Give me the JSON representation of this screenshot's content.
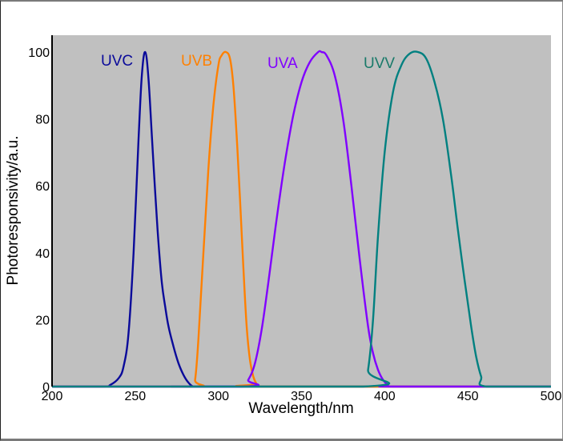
{
  "chart_data": {
    "type": "line",
    "title": "",
    "xlabel": "Wavelength/nm",
    "ylabel": "Photoresponsivity/a.u.",
    "xlim": [
      200,
      500
    ],
    "ylim": [
      0,
      105
    ],
    "x_ticks": [
      200,
      250,
      300,
      350,
      400,
      450,
      500
    ],
    "y_ticks": [
      0,
      20,
      40,
      60,
      80,
      100
    ],
    "grid": false,
    "legend": "inline labels near peaks",
    "plot_background": "#c0c0c0",
    "series": [
      {
        "name": "UVC",
        "color": "#0a0a9a",
        "label_pos": [
          234,
          100
        ],
        "x": [
          200,
          230,
          235,
          240,
          243,
          246,
          249,
          252,
          254,
          256,
          258,
          260,
          262,
          264,
          266,
          268,
          270,
          273,
          276,
          279,
          282,
          285,
          290,
          500
        ],
        "y": [
          0,
          0,
          0.5,
          2.5,
          6,
          16,
          40,
          74,
          93,
          100,
          92,
          75,
          58,
          43,
          31,
          24,
          18,
          12,
          7,
          3.5,
          1.2,
          0,
          0,
          0
        ]
      },
      {
        "name": "UVB",
        "color": "#ff8000",
        "label_pos": [
          282,
          100
        ],
        "x": [
          200,
          284,
          286,
          288,
          291,
          294,
          297,
          300,
          302,
          304.5,
          307,
          309,
          311,
          313,
          315,
          317,
          319,
          321,
          323,
          325,
          500
        ],
        "y": [
          0,
          0,
          2,
          14,
          40,
          65,
          84,
          96,
          99,
          100,
          98,
          90,
          75,
          56,
          36,
          18,
          8,
          3,
          0.8,
          0,
          0
        ]
      },
      {
        "name": "UVA",
        "color": "#8000ff",
        "label_pos": [
          338,
          100
        ],
        "x": [
          200,
          314,
          318,
          322,
          326,
          330,
          335,
          340,
          345,
          350,
          355,
          360,
          362,
          365,
          370,
          375,
          380,
          385,
          390,
          393,
          396,
          399,
          402,
          405,
          500
        ],
        "y": [
          0,
          0,
          2,
          7,
          17,
          31,
          50,
          67,
          81,
          91,
          97,
          100,
          100,
          99,
          93,
          80,
          60,
          38,
          18,
          10,
          5,
          2,
          0.5,
          0,
          0
        ]
      },
      {
        "name": "UVV",
        "color": "#008080",
        "label_pos": [
          403,
          100
        ],
        "x": [
          200,
          387,
          390,
          393,
          396,
          400,
          405,
          410,
          415,
          420,
          425,
          430,
          435,
          440,
          444,
          448,
          452,
          455,
          458,
          461,
          500
        ],
        "y": [
          0,
          0,
          5,
          20,
          45,
          70,
          88,
          96,
          99.5,
          100,
          98,
          91,
          80,
          63,
          47,
          32,
          18,
          9,
          3,
          0,
          0
        ]
      }
    ]
  },
  "axes": {
    "xlabel": "Wavelength/nm",
    "ylabel": "Photoresponsivity/a.u.",
    "x_tick_labels": [
      "200",
      "250",
      "300",
      "350",
      "400",
      "450",
      "500"
    ],
    "y_tick_labels": [
      "0",
      "20",
      "40",
      "60",
      "80",
      "100"
    ]
  },
  "labels": {
    "uvc": "UVC",
    "uvb": "UVB",
    "uva": "UVA",
    "uvv": "UVV"
  }
}
